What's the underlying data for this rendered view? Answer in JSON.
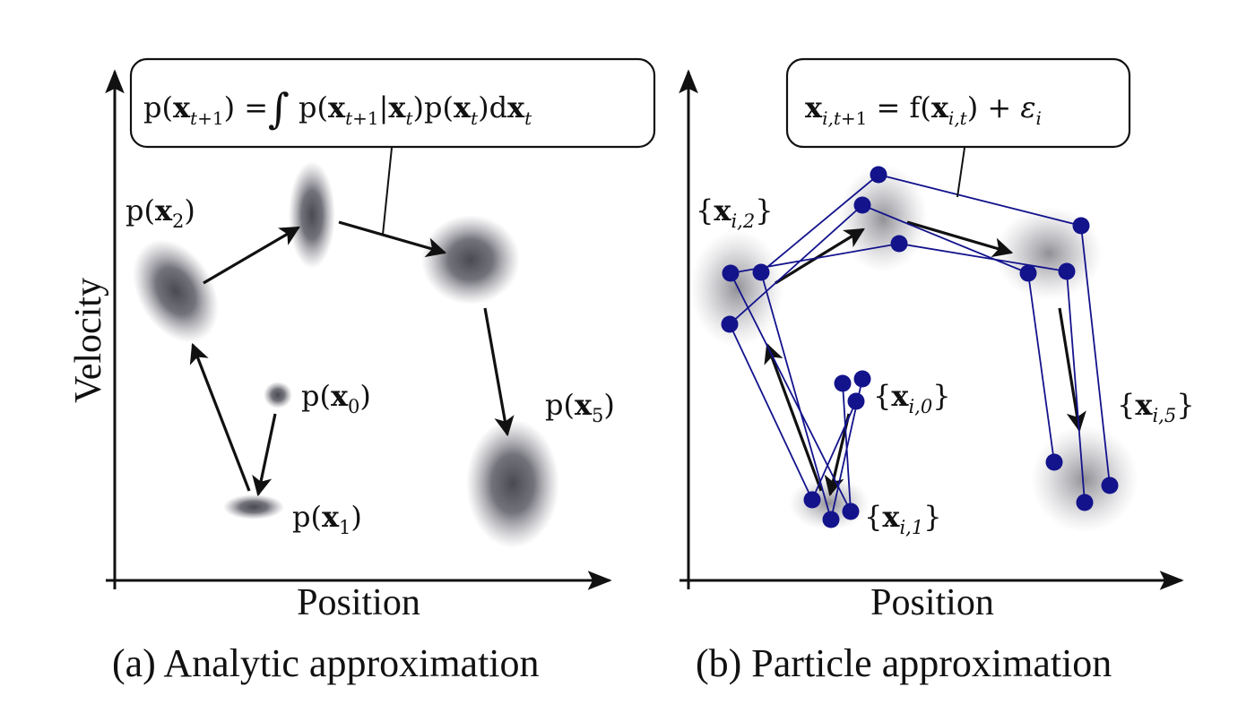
{
  "panel_a": {
    "caption": "(a) Analytic approximation",
    "xlabel": "Position",
    "ylabel": "Velocity",
    "formula": {
      "lhs": "p(x_{t+1}) =",
      "integral": "∫",
      "rhs": "p(x_{t+1}|x_t)p(x_t)dx_t"
    },
    "labels": {
      "x0": {
        "pre": "p(",
        "var": "x",
        "sub": "0",
        "post": ")"
      },
      "x1": {
        "pre": "p(",
        "var": "x",
        "sub": "1",
        "post": ")"
      },
      "x2": {
        "pre": "p(",
        "var": "x",
        "sub": "2",
        "post": ")"
      },
      "x5": {
        "pre": "p(",
        "var": "x",
        "sub": "5",
        "post": ")"
      }
    }
  },
  "panel_b": {
    "caption": "(b) Particle approximation",
    "xlabel": "Position",
    "formula": "x_{i,t+1} = f(x_{i,t}) + ε_i",
    "labels": {
      "x0": {
        "pre": "{",
        "var": "x",
        "sub": "i,0",
        "post": "}"
      },
      "x1": {
        "pre": "{",
        "var": "x",
        "sub": "i,1",
        "post": "}"
      },
      "x2": {
        "pre": "{",
        "var": "x",
        "sub": "i,2",
        "post": "}"
      },
      "x5": {
        "pre": "{",
        "var": "x",
        "sub": "i,5",
        "post": "}"
      }
    }
  },
  "colors": {
    "particle": "#13138c",
    "blob": "#55555f",
    "ink": "#111111"
  }
}
